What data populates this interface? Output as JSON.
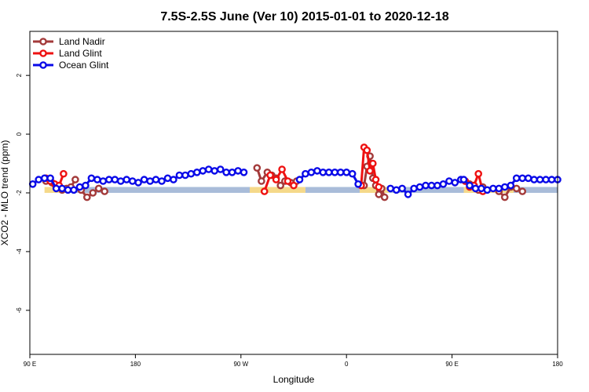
{
  "chart_data": {
    "type": "line",
    "title": "7.5S-2.5S June (Ver 10)   2015-01-01 to 2020-12-18",
    "xlabel": "Longitude",
    "ylabel": "XCO2 - MLO trend (ppm)",
    "xlim": [
      0,
      360
    ],
    "ylim": [
      -7.5,
      3.5
    ],
    "x_ticks": [
      {
        "value": 0,
        "label": "90 E"
      },
      {
        "value": 72,
        "label": "180"
      },
      {
        "value": 144,
        "label": "90 W"
      },
      {
        "value": 216,
        "label": "0"
      },
      {
        "value": 288,
        "label": "90 E"
      },
      {
        "value": 360,
        "label": "180"
      }
    ],
    "y_ticks": [
      {
        "value": 2,
        "label": "2"
      },
      {
        "value": 0,
        "label": "0"
      },
      {
        "value": -2,
        "label": "-2"
      },
      {
        "value": -4,
        "label": "-4"
      },
      {
        "value": -6,
        "label": "-6"
      }
    ],
    "grid": false,
    "legend": {
      "position": "top-left"
    },
    "background_bands": [
      {
        "kind": "land-strip",
        "color": "#f5d98a",
        "y_range": [
          -2.0,
          -1.8
        ],
        "segments": [
          [
            10,
            22
          ],
          [
            150,
            188
          ],
          [
            225,
            245
          ],
          [
            296,
            330
          ]
        ]
      },
      {
        "kind": "ocean-strip",
        "color": "#a9bcd9",
        "y_range": [
          -2.0,
          -1.8
        ],
        "segments": [
          [
            22,
            150
          ],
          [
            188,
            225
          ],
          [
            245,
            296
          ],
          [
            330,
            360
          ]
        ]
      }
    ],
    "series": [
      {
        "name": "Land Nadir",
        "color": "#a33a3a",
        "segments": [
          {
            "x": [
              11,
              15,
              18,
              22,
              25,
              28,
              31
            ],
            "y": [
              -1.6,
              -1.65,
              -1.75,
              -1.9,
              -1.85,
              -1.8,
              -1.55
            ]
          },
          {
            "x": [
              35,
              39,
              43,
              47,
              51
            ],
            "y": [
              -1.9,
              -2.15,
              -2.0,
              -1.85,
              -1.95
            ]
          },
          {
            "x": [
              155,
              158,
              162,
              165,
              168,
              171,
              174,
              178,
              182
            ],
            "y": [
              -1.15,
              -1.6,
              -1.3,
              -1.4,
              -1.5,
              -1.75,
              -1.6,
              -1.65,
              -1.6
            ]
          },
          {
            "x": [
              228,
              230,
              232,
              234,
              236,
              238,
              240,
              242
            ],
            "y": [
              -1.75,
              -1.1,
              -0.75,
              -1.5,
              -1.75,
              -2.05,
              -1.85,
              -2.15
            ]
          },
          {
            "x": [
              297,
              300,
              303,
              306,
              309
            ],
            "y": [
              -1.6,
              -1.7,
              -1.75,
              -1.9,
              -1.8
            ]
          },
          {
            "x": [
              320,
              324,
              328,
              332,
              336
            ],
            "y": [
              -1.95,
              -2.15,
              -1.8,
              -1.85,
              -1.95
            ]
          }
        ]
      },
      {
        "name": "Land Glint",
        "color": "#ee1111",
        "segments": [
          {
            "x": [
              11,
              14,
              17,
              20,
              23
            ],
            "y": [
              -1.5,
              -1.6,
              -1.7,
              -1.75,
              -1.35
            ]
          },
          {
            "x": [
              160,
              164,
              168,
              172,
              176,
              180
            ],
            "y": [
              -1.95,
              -1.4,
              -1.55,
              -1.2,
              -1.6,
              -1.75
            ]
          },
          {
            "x": [
              226,
              228,
              230,
              232,
              234,
              236,
              238
            ],
            "y": [
              -1.75,
              -0.45,
              -0.55,
              -1.25,
              -1.0,
              -1.55,
              -1.8
            ]
          },
          {
            "x": [
              297,
              300,
              303,
              306,
              309
            ],
            "y": [
              -1.6,
              -1.8,
              -1.75,
              -1.35,
              -1.95
            ]
          }
        ]
      },
      {
        "name": "Ocean Glint",
        "color": "#0a0ae8",
        "segments": [
          {
            "x": [
              2,
              6,
              10,
              14,
              18,
              22,
              26,
              30,
              34,
              38,
              42,
              46,
              50,
              54,
              58,
              62,
              66,
              70,
              74,
              78,
              82,
              86,
              90,
              94,
              98,
              102,
              106,
              110,
              114,
              118,
              122,
              126,
              130,
              134,
              138,
              142,
              146
            ],
            "y": [
              -1.7,
              -1.55,
              -1.5,
              -1.5,
              -1.85,
              -1.85,
              -1.9,
              -1.9,
              -1.8,
              -1.75,
              -1.5,
              -1.55,
              -1.6,
              -1.55,
              -1.55,
              -1.6,
              -1.55,
              -1.6,
              -1.65,
              -1.55,
              -1.6,
              -1.55,
              -1.6,
              -1.5,
              -1.55,
              -1.4,
              -1.4,
              -1.35,
              -1.3,
              -1.25,
              -1.2,
              -1.25,
              -1.2,
              -1.3,
              -1.3,
              -1.25,
              -1.3
            ]
          },
          {
            "x": [
              184,
              188,
              192,
              196,
              200,
              204,
              208,
              212,
              216,
              220,
              224
            ],
            "y": [
              -1.55,
              -1.35,
              -1.3,
              -1.25,
              -1.3,
              -1.3,
              -1.3,
              -1.3,
              -1.3,
              -1.35,
              -1.7
            ]
          },
          {
            "x": [
              246,
              250,
              254,
              258,
              262,
              266,
              270,
              274,
              278,
              282,
              286,
              290,
              294
            ],
            "y": [
              -1.85,
              -1.9,
              -1.85,
              -2.05,
              -1.85,
              -1.8,
              -1.75,
              -1.75,
              -1.75,
              -1.7,
              -1.6,
              -1.65,
              -1.55
            ]
          },
          {
            "x": [
              296,
              300,
              304,
              308,
              312,
              316,
              320,
              324,
              328,
              332,
              336,
              340,
              344,
              348,
              352,
              356,
              360
            ],
            "y": [
              -1.55,
              -1.75,
              -1.85,
              -1.85,
              -1.9,
              -1.85,
              -1.85,
              -1.8,
              -1.75,
              -1.5,
              -1.5,
              -1.5,
              -1.55,
              -1.55,
              -1.55,
              -1.55,
              -1.55
            ]
          }
        ]
      }
    ]
  }
}
